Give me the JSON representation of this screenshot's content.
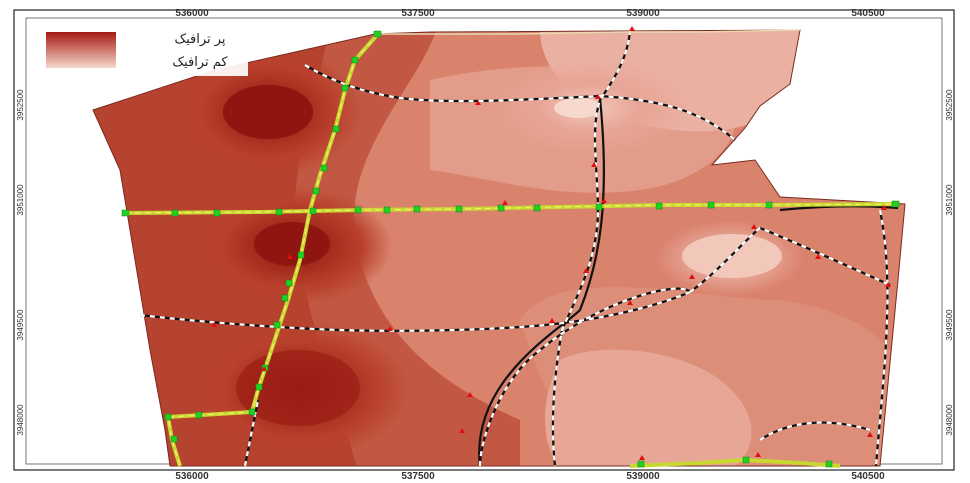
{
  "legend": {
    "high_label": "پر ترافیک",
    "low_label": "کم ترافیک",
    "high_color": "#a51a12",
    "low_color": "#f6d8cc"
  },
  "axes": {
    "x_ticks": [
      "536000",
      "537500",
      "539000",
      "540500"
    ],
    "y_ticks": [
      "3952500",
      "3951000",
      "3949500",
      "3948000"
    ]
  },
  "colors": {
    "surface_dark": "#8e1510",
    "surface_mid": "#c5553f",
    "surface_light": "#e8a596",
    "surface_lightest": "#f2c8bb",
    "highway": "#c8d830",
    "highway_nodes": "#22d022",
    "roads": "#111111",
    "points": "#e01010"
  }
}
